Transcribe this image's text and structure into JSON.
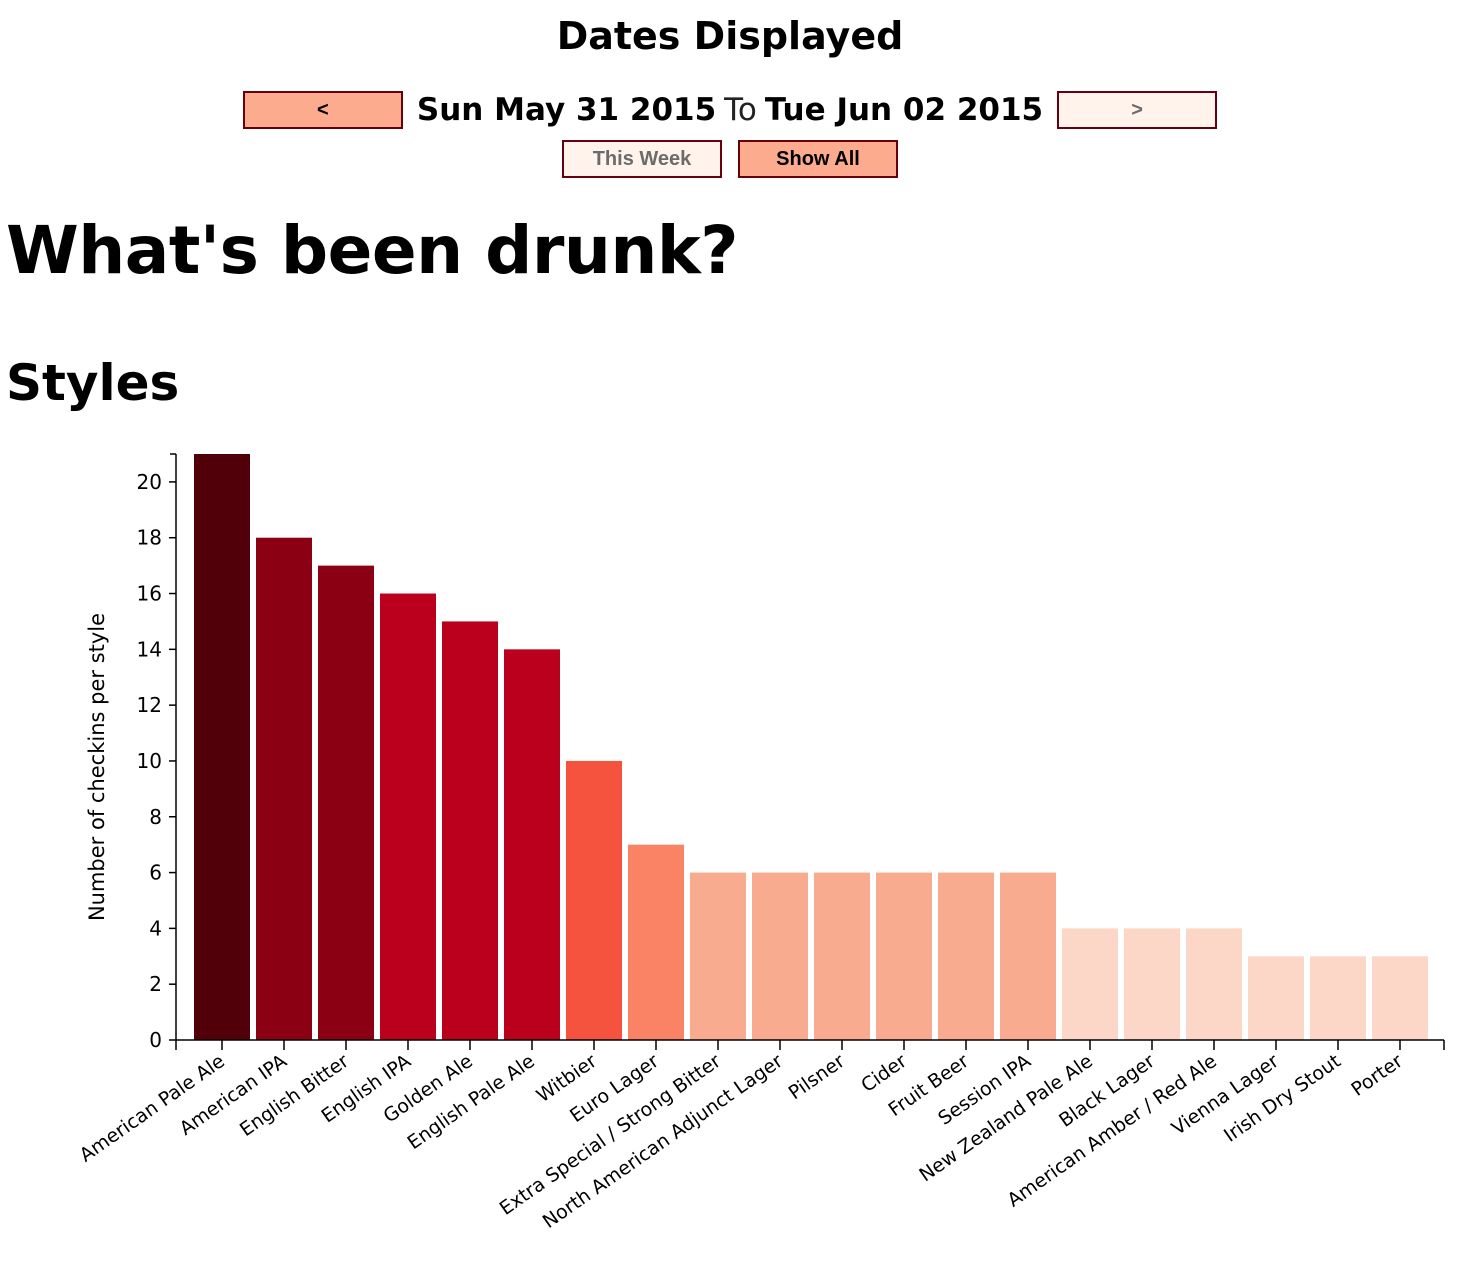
{
  "header": {
    "title": "Dates Displayed",
    "prev_label": "<",
    "next_label": ">",
    "start_date": "Sun May 31 2015",
    "to_label": "To",
    "end_date": "Tue Jun 02 2015",
    "this_week_label": "This Week",
    "show_all_label": "Show All"
  },
  "page_title": "What's been drunk?",
  "section_title": "Styles",
  "colors": {
    "button_active": "#fcab8e",
    "button_inactive": "#fff3ec",
    "button_border": "#67000d"
  },
  "chart_data": {
    "type": "bar",
    "title": "",
    "xlabel": "",
    "ylabel": "Number of checkins per style",
    "ylim": [
      0,
      21
    ],
    "yticks": [
      0,
      2,
      4,
      6,
      8,
      10,
      12,
      14,
      16,
      18,
      20
    ],
    "grid": false,
    "categories": [
      "American Pale Ale",
      "American IPA",
      "English Bitter",
      "English IPA",
      "Golden Ale",
      "English Pale Ale",
      "Witbier",
      "Euro Lager",
      "Extra Special / Strong Bitter",
      "North American Adjunct Lager",
      "Pilsner",
      "Cider",
      "Fruit Beer",
      "Session IPA",
      "New Zealand Pale Ale",
      "Black Lager",
      "American Amber / Red Ale",
      "Vienna Lager",
      "Irish Dry Stout",
      "Porter"
    ],
    "values": [
      21,
      18,
      17,
      16,
      15,
      14,
      10,
      7,
      6,
      6,
      6,
      6,
      6,
      6,
      4,
      4,
      4,
      3,
      3,
      3
    ],
    "bar_colors": [
      "#510009",
      "#8c0014",
      "#8c0014",
      "#bb001d",
      "#bb001d",
      "#bb001d",
      "#f5533e",
      "#f98364",
      "#f9ab8f",
      "#f9ab8f",
      "#f9ab8f",
      "#f9ab8f",
      "#f9ab8f",
      "#f9ab8f",
      "#fcd6c7",
      "#fcd6c7",
      "#fcd6c7",
      "#fcd6c7",
      "#fcd6c7",
      "#fcd6c7"
    ]
  }
}
